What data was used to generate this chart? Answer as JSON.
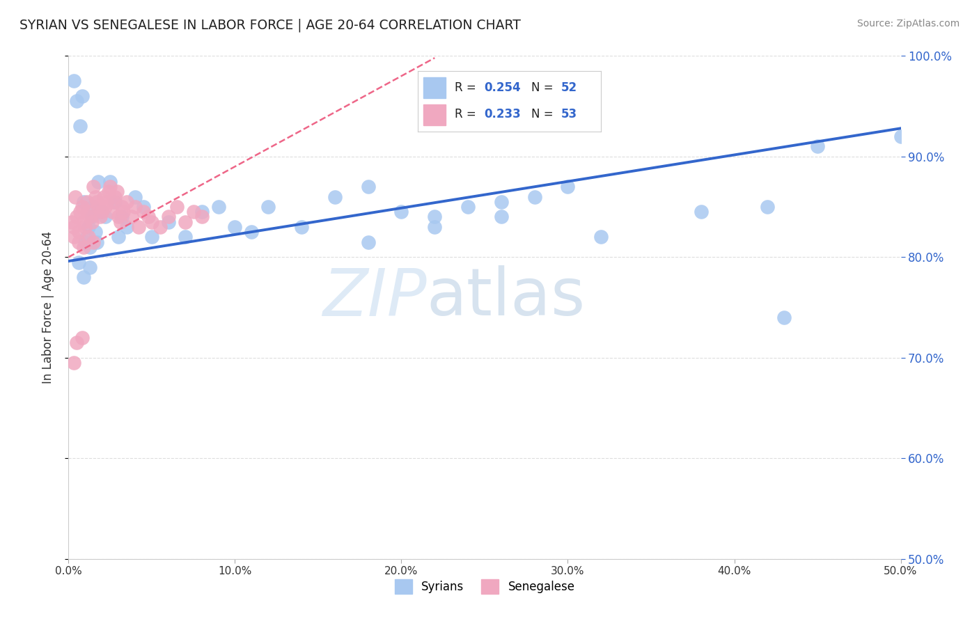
{
  "title": "SYRIAN VS SENEGALESE IN LABOR FORCE | AGE 20-64 CORRELATION CHART",
  "source": "Source: ZipAtlas.com",
  "ylabel": "In Labor Force | Age 20-64",
  "xlim": [
    0.0,
    0.5
  ],
  "ylim": [
    0.5,
    1.0
  ],
  "xtick_vals": [
    0.0,
    0.1,
    0.2,
    0.3,
    0.4,
    0.5
  ],
  "xtick_labels": [
    "0.0%",
    "10.0%",
    "20.0%",
    "30.0%",
    "40.0%",
    "50.0%"
  ],
  "ytick_vals": [
    0.5,
    0.6,
    0.7,
    0.8,
    0.9,
    1.0
  ],
  "ytick_labels": [
    "50.0%",
    "60.0%",
    "70.0%",
    "80.0%",
    "90.0%",
    "100.0%"
  ],
  "syrians_R": 0.254,
  "syrians_N": 52,
  "senegalese_R": 0.233,
  "senegalese_N": 53,
  "syrian_color": "#a8c8f0",
  "senegalese_color": "#f0a8c0",
  "syrian_line_color": "#3366cc",
  "senegalese_line_color": "#ee6688",
  "legend_text_color": "#3366cc",
  "watermark_color": "#c8ddf0",
  "background_color": "#ffffff",
  "grid_color": "#dddddd",
  "right_tick_color": "#3366cc",
  "syrians_x": [
    0.003,
    0.005,
    0.007,
    0.008,
    0.009,
    0.01,
    0.011,
    0.012,
    0.013,
    0.014,
    0.015,
    0.016,
    0.017,
    0.018,
    0.02,
    0.022,
    0.025,
    0.028,
    0.03,
    0.032,
    0.035,
    0.04,
    0.045,
    0.05,
    0.06,
    0.07,
    0.08,
    0.09,
    0.1,
    0.11,
    0.12,
    0.14,
    0.16,
    0.18,
    0.2,
    0.22,
    0.24,
    0.26,
    0.28,
    0.3,
    0.18,
    0.22,
    0.26,
    0.32,
    0.38,
    0.42,
    0.45,
    0.006,
    0.009,
    0.013,
    0.5,
    0.43
  ],
  "syrians_y": [
    0.975,
    0.955,
    0.93,
    0.96,
    0.855,
    0.815,
    0.82,
    0.83,
    0.81,
    0.84,
    0.85,
    0.825,
    0.815,
    0.875,
    0.845,
    0.84,
    0.875,
    0.855,
    0.82,
    0.84,
    0.83,
    0.86,
    0.85,
    0.82,
    0.835,
    0.82,
    0.845,
    0.85,
    0.83,
    0.825,
    0.85,
    0.83,
    0.86,
    0.87,
    0.845,
    0.84,
    0.85,
    0.855,
    0.86,
    0.87,
    0.815,
    0.83,
    0.84,
    0.82,
    0.845,
    0.85,
    0.91,
    0.795,
    0.78,
    0.79,
    0.92,
    0.74
  ],
  "senegalese_x": [
    0.002,
    0.003,
    0.004,
    0.005,
    0.006,
    0.007,
    0.008,
    0.009,
    0.01,
    0.011,
    0.012,
    0.013,
    0.014,
    0.015,
    0.016,
    0.017,
    0.018,
    0.019,
    0.02,
    0.021,
    0.022,
    0.023,
    0.024,
    0.025,
    0.026,
    0.027,
    0.028,
    0.029,
    0.03,
    0.031,
    0.032,
    0.033,
    0.035,
    0.038,
    0.04,
    0.042,
    0.045,
    0.048,
    0.05,
    0.055,
    0.06,
    0.065,
    0.07,
    0.075,
    0.08,
    0.003,
    0.006,
    0.009,
    0.012,
    0.015,
    0.005,
    0.008,
    0.003
  ],
  "senegalese_y": [
    0.835,
    0.83,
    0.86,
    0.84,
    0.825,
    0.845,
    0.85,
    0.835,
    0.83,
    0.855,
    0.845,
    0.84,
    0.835,
    0.87,
    0.86,
    0.855,
    0.85,
    0.84,
    0.845,
    0.86,
    0.85,
    0.855,
    0.865,
    0.87,
    0.845,
    0.855,
    0.86,
    0.865,
    0.84,
    0.835,
    0.85,
    0.845,
    0.855,
    0.84,
    0.85,
    0.83,
    0.845,
    0.84,
    0.835,
    0.83,
    0.84,
    0.85,
    0.835,
    0.845,
    0.84,
    0.82,
    0.815,
    0.81,
    0.82,
    0.815,
    0.715,
    0.72,
    0.695
  ],
  "blue_line_x0": 0.0,
  "blue_line_y0": 0.796,
  "blue_line_x1": 0.5,
  "blue_line_y1": 0.928,
  "pink_line_x0": 0.0,
  "pink_line_y0": 0.8,
  "pink_line_x1": 0.22,
  "pink_line_y1": 0.998
}
